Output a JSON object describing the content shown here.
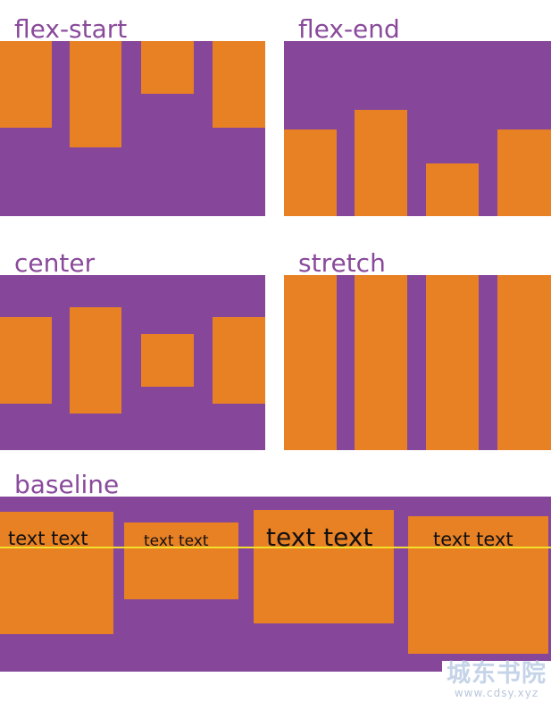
{
  "sections": {
    "flex_start": {
      "label": "flex-start"
    },
    "flex_end": {
      "label": "flex-end"
    },
    "center": {
      "label": "center"
    },
    "stretch": {
      "label": "stretch"
    },
    "baseline": {
      "label": "baseline",
      "items": [
        {
          "text": "text text"
        },
        {
          "text": "text text"
        },
        {
          "text": "text text"
        },
        {
          "text": "text text"
        }
      ]
    }
  },
  "watermark": {
    "name": "城东书院",
    "url": "www.cdsy.xyz"
  },
  "colors": {
    "container": "#86479a",
    "item": "#e88024",
    "label": "#8a4a9b",
    "baseline_guide": "#f2e02a"
  }
}
